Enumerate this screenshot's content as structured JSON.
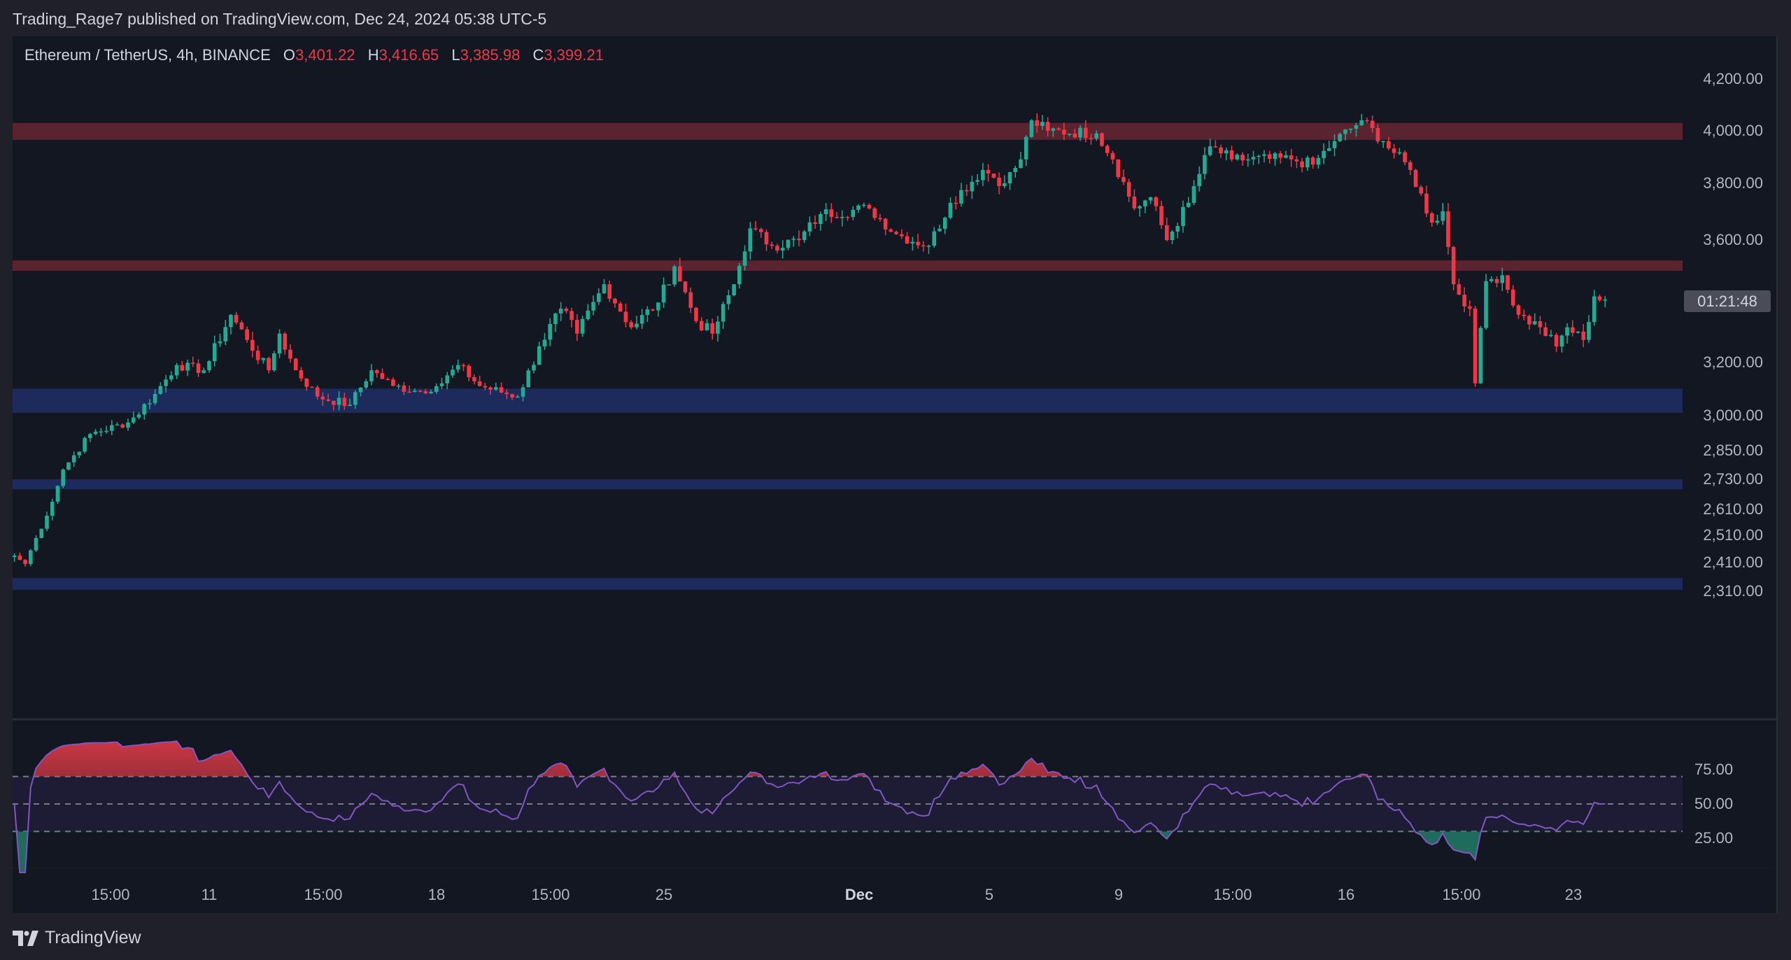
{
  "header": {
    "published": "Trading_Rage7 published on TradingView.com, Dec 24, 2024 05:38 UTC-5"
  },
  "legend": {
    "symbol": "Ethereum / TetherUS, 4h, BINANCE",
    "o_label": "O",
    "o": "3,401.22",
    "h_label": "H",
    "h": "3,416.65",
    "l_label": "L",
    "l": "3,385.98",
    "c_label": "C",
    "c": "3,399.21"
  },
  "countdown": "01:21:48",
  "footer": {
    "brand": "TradingView",
    "logo_icon": "tradingview-logo-icon"
  },
  "colors": {
    "up": "#22ab94",
    "down": "#f23645",
    "resistance": "#5a2330",
    "support": "#1c2b5c",
    "rsi": "#7e57c2",
    "background": "#131722"
  },
  "chart_data": [
    {
      "type": "candlestick",
      "title": "",
      "timeframe": "4h",
      "y_scale": "log",
      "y_ticks": [
        "4,200.00",
        "4,000.00",
        "3,800.00",
        "3,600.00",
        "3,200.00",
        "3,000.00",
        "2,850.00",
        "2,730.00",
        "2,610.00",
        "2,510.00",
        "2,410.00",
        "2,310.00"
      ],
      "y_tick_values": [
        4200,
        4000,
        3800,
        3600,
        3200,
        3000,
        2850,
        2730,
        2610,
        2510,
        2410,
        2310
      ],
      "x_ticks": [
        {
          "label": "15:00",
          "bold": false
        },
        {
          "label": "11",
          "bold": false
        },
        {
          "label": "15:00",
          "bold": false
        },
        {
          "label": "18",
          "bold": false
        },
        {
          "label": "15:00",
          "bold": false
        },
        {
          "label": "25",
          "bold": false
        },
        {
          "label": "Dec",
          "bold": true
        },
        {
          "label": "5",
          "bold": false
        },
        {
          "label": "9",
          "bold": false
        },
        {
          "label": "15:00",
          "bold": false
        },
        {
          "label": "16",
          "bold": false
        },
        {
          "label": "15:00",
          "bold": false
        },
        {
          "label": "23",
          "bold": false
        }
      ],
      "zones": [
        {
          "kind": "resistance",
          "from": 3965,
          "to": 4030
        },
        {
          "kind": "resistance",
          "from": 3495,
          "to": 3530
        },
        {
          "kind": "support",
          "from": 3010,
          "to": 3100
        },
        {
          "kind": "support",
          "from": 2690,
          "to": 2730
        },
        {
          "kind": "support",
          "from": 2315,
          "to": 2355
        }
      ],
      "close_path": [
        [
          "2024-11-05 00:00",
          2435
        ],
        [
          "2024-11-05 08:00",
          2405
        ],
        [
          "2024-11-05 16:00",
          2500
        ],
        [
          "2024-11-06 04:00",
          2640
        ],
        [
          "2024-11-06 12:00",
          2770
        ],
        [
          "2024-11-06 20:00",
          2830
        ],
        [
          "2024-11-07 08:00",
          2920
        ],
        [
          "2024-11-08 12:00",
          2970
        ],
        [
          "2024-11-09 08:00",
          3080
        ],
        [
          "2024-11-10 00:00",
          3190
        ],
        [
          "2024-11-10 20:00",
          3170
        ],
        [
          "2024-11-11 16:00",
          3350
        ],
        [
          "2024-11-12 04:00",
          3270
        ],
        [
          "2024-11-12 20:00",
          3170
        ],
        [
          "2024-11-13 04:00",
          3290
        ],
        [
          "2024-11-13 16:00",
          3170
        ],
        [
          "2024-11-14 08:00",
          3070
        ],
        [
          "2024-11-15 08:00",
          3040
        ],
        [
          "2024-11-16 00:00",
          3170
        ],
        [
          "2024-11-16 16:00",
          3110
        ],
        [
          "2024-11-17 12:00",
          3090
        ],
        [
          "2024-11-18 04:00",
          3120
        ],
        [
          "2024-11-18 16:00",
          3190
        ],
        [
          "2024-11-19 08:00",
          3110
        ],
        [
          "2024-11-20 12:00",
          3070
        ],
        [
          "2024-11-21 04:00",
          3250
        ],
        [
          "2024-11-21 20:00",
          3370
        ],
        [
          "2024-11-22 08:00",
          3290
        ],
        [
          "2024-11-23 04:00",
          3450
        ],
        [
          "2024-11-24 00:00",
          3310
        ],
        [
          "2024-11-24 20:00",
          3390
        ],
        [
          "2024-11-25 08:00",
          3510
        ],
        [
          "2024-11-26 00:00",
          3330
        ],
        [
          "2024-11-26 12:00",
          3290
        ],
        [
          "2024-11-27 04:00",
          3450
        ],
        [
          "2024-11-27 16:00",
          3640
        ],
        [
          "2024-11-28 08:00",
          3580
        ],
        [
          "2024-11-29 04:00",
          3600
        ],
        [
          "2024-11-29 20:00",
          3690
        ],
        [
          "2024-12-01 08:00",
          3710
        ],
        [
          "2024-12-02 04:00",
          3620
        ],
        [
          "2024-12-03 04:00",
          3580
        ],
        [
          "2024-12-03 20:00",
          3730
        ],
        [
          "2024-12-04 20:00",
          3850
        ],
        [
          "2024-12-05 12:00",
          3800
        ],
        [
          "2024-12-06 00:00",
          3890
        ],
        [
          "2024-12-06 08:00",
          4040
        ],
        [
          "2024-12-06 20:00",
          4000
        ],
        [
          "2024-12-08 08:00",
          3990
        ],
        [
          "2024-12-08 20:00",
          3890
        ],
        [
          "2024-12-09 12:00",
          3710
        ],
        [
          "2024-12-10 00:00",
          3750
        ],
        [
          "2024-12-10 12:00",
          3600
        ],
        [
          "2024-12-11 04:00",
          3730
        ],
        [
          "2024-12-11 20:00",
          3940
        ],
        [
          "2024-12-12 12:00",
          3890
        ],
        [
          "2024-12-14 08:00",
          3890
        ],
        [
          "2024-12-15 00:00",
          3870
        ],
        [
          "2024-12-15 16:00",
          3960
        ],
        [
          "2024-12-16 12:00",
          4040
        ],
        [
          "2024-12-17 04:00",
          3960
        ],
        [
          "2024-12-18 00:00",
          3850
        ],
        [
          "2024-12-18 16:00",
          3660
        ],
        [
          "2024-12-19 00:00",
          3700
        ],
        [
          "2024-12-19 08:00",
          3450
        ],
        [
          "2024-12-19 20:00",
          3370
        ],
        [
          "2024-12-20 00:00",
          3120
        ],
        [
          "2024-12-20 08:00",
          3460
        ],
        [
          "2024-12-20 20:00",
          3480
        ],
        [
          "2024-12-21 08:00",
          3350
        ],
        [
          "2024-12-22 00:00",
          3310
        ],
        [
          "2024-12-22 12:00",
          3250
        ],
        [
          "2024-12-22 20:00",
          3310
        ],
        [
          "2024-12-23 08:00",
          3270
        ],
        [
          "2024-12-23 16:00",
          3410
        ],
        [
          "2024-12-24 00:00",
          3399.21
        ]
      ]
    },
    {
      "type": "line",
      "indicator": "RSI",
      "y_ticks": [
        "75.00",
        "50.00",
        "25.00"
      ],
      "y_tick_values": [
        75,
        50,
        25
      ],
      "bands": [
        70,
        50,
        30
      ]
    }
  ]
}
